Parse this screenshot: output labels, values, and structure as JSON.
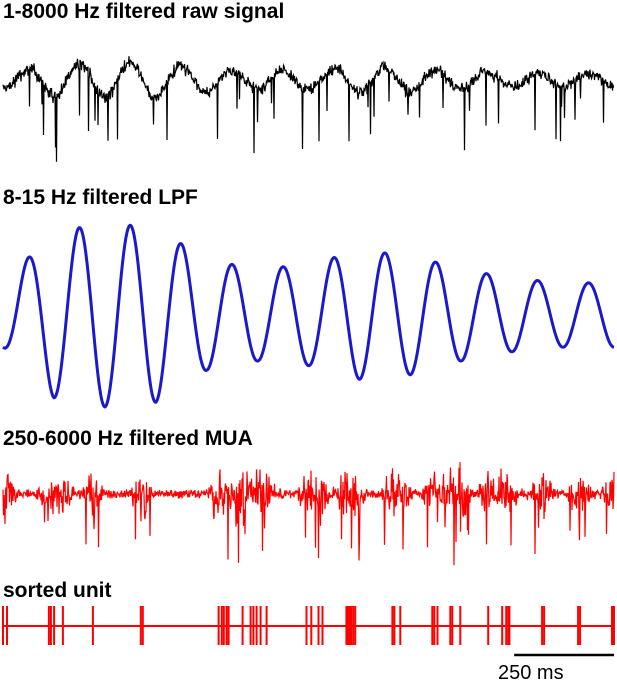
{
  "panels": {
    "raw": {
      "title": "1-8000 Hz filtered raw signal",
      "color": "#000000"
    },
    "lpf": {
      "title": "8-15 Hz filtered LPF",
      "color": "#1a1acc"
    },
    "mua": {
      "title": "250-6000 Hz filtered MUA",
      "color": "#ff0000"
    },
    "unit": {
      "title": "sorted unit",
      "color": "#ff0000"
    }
  },
  "scale_bar": {
    "label": "250 ms",
    "duration_ms": 250
  },
  "chart_data": [
    {
      "type": "line",
      "title": "1-8000 Hz filtered raw signal",
      "xlabel": "",
      "ylabel": "",
      "notes": "broadband noisy trace with slow oscillation and downward spikes; no numeric axes shown"
    },
    {
      "type": "line",
      "title": "8-15 Hz filtered LPF",
      "xlabel": "",
      "ylabel": "",
      "relative_amplitude_peaks": [
        0.35,
        0.9,
        1.0,
        0.95,
        0.6,
        0.5,
        0.55,
        0.7,
        0.65,
        0.5,
        0.4,
        0.35
      ],
      "notes": "sinusoidal oscillation, ~12 cycles across ~1.25 s; amplitudes relative to max"
    },
    {
      "type": "line",
      "title": "250-6000 Hz filtered MUA",
      "xlabel": "",
      "ylabel": "",
      "notes": "high-frequency multi-unit activity with bursts aligned to LPF troughs"
    },
    {
      "type": "scatter",
      "title": "sorted unit",
      "xlabel": "",
      "ylabel": "",
      "spike_times_ms": [
        0,
        10,
        115,
        120,
        128,
        150,
        225,
        345,
        350,
        540,
        548,
        553,
        560,
        565,
        600,
        620,
        627,
        635,
        645,
        660,
        760,
        772,
        790,
        800,
        860,
        864,
        868,
        872,
        877,
        882,
        975,
        980,
        995,
        1075,
        1080,
        1088,
        1120,
        1125,
        1145,
        1215,
        1250,
        1260,
        1265,
        1268,
        1350,
        1355,
        1440,
        1445,
        1525,
        1530
      ],
      "notes": "raster of sorted-unit spike times; estimated from tick positions, scale bar = 250 ms"
    }
  ]
}
